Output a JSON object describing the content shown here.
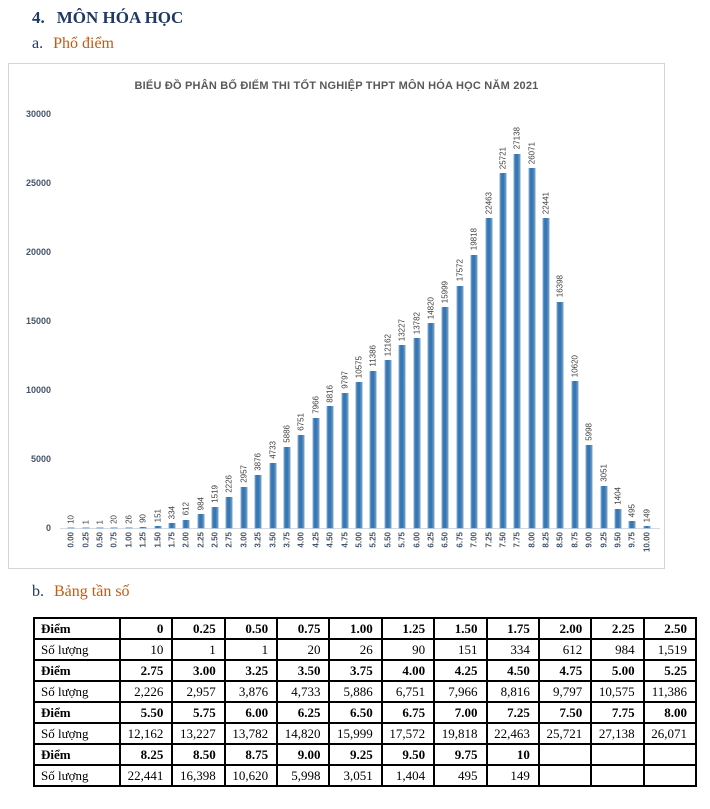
{
  "page": {
    "section_number": "4.",
    "section_title": "MÔN HÓA HỌC",
    "sub_a_prefix": "a.",
    "sub_a_label": "Phổ điểm",
    "sub_b_prefix": "b.",
    "sub_b_label": "Bảng tần số"
  },
  "chart_data": {
    "type": "bar",
    "title": "BIỂU ĐỒ PHÂN BỐ ĐIỂM THI TỐT NGHIỆP THPT MÔN HÓA HỌC NĂM 2021",
    "xlabel": "",
    "ylabel": "",
    "categories": [
      "0.00",
      "0.25",
      "0.50",
      "0.75",
      "1.00",
      "1.25",
      "1.50",
      "1.75",
      "2.00",
      "2.25",
      "2.50",
      "2.75",
      "3.00",
      "3.25",
      "3.50",
      "3.75",
      "4.00",
      "4.25",
      "4.50",
      "4.75",
      "5.00",
      "5.25",
      "5.50",
      "5.75",
      "6.00",
      "6.25",
      "6.50",
      "6.75",
      "7.00",
      "7.25",
      "7.50",
      "7.75",
      "8.00",
      "8.25",
      "8.50",
      "8.75",
      "9.00",
      "9.25",
      "9.50",
      "9.75",
      "10.00"
    ],
    "values": [
      10,
      1,
      1,
      20,
      26,
      90,
      151,
      334,
      612,
      984,
      1519,
      2226,
      2957,
      3876,
      4733,
      5886,
      6751,
      7966,
      8816,
      9797,
      10575,
      11386,
      12162,
      13227,
      13782,
      14820,
      15999,
      17572,
      19818,
      22463,
      25721,
      27138,
      26071,
      22441,
      16398,
      10620,
      5998,
      3051,
      1404,
      495,
      149
    ],
    "ylim": [
      0,
      30000
    ],
    "yticks": [
      0,
      5000,
      10000,
      15000,
      20000,
      25000,
      30000
    ],
    "grid": false,
    "legend": null,
    "bar_color": "#2E74B5",
    "bar_labels_rotated": true
  },
  "colors": {
    "heading_navy": "#1F3864",
    "heading_orange": "#C55A11",
    "chart_title_gray": "#595959",
    "axis_label": "#44546A",
    "bar_blue": "#2E74B5"
  },
  "table": {
    "row_label_score": "Điểm",
    "row_label_count": "Số lượng",
    "rows": [
      {
        "label": "Điểm",
        "bold": true,
        "cells": [
          "0",
          "0.25",
          "0.50",
          "0.75",
          "1.00",
          "1.25",
          "1.50",
          "1.75",
          "2.00",
          "2.25",
          "2.50"
        ]
      },
      {
        "label": "Số lượng",
        "bold": false,
        "cells": [
          "10",
          "1",
          "1",
          "20",
          "26",
          "90",
          "151",
          "334",
          "612",
          "984",
          "1,519"
        ]
      },
      {
        "label": "Điểm",
        "bold": true,
        "cells": [
          "2.75",
          "3.00",
          "3.25",
          "3.50",
          "3.75",
          "4.00",
          "4.25",
          "4.50",
          "4.75",
          "5.00",
          "5.25"
        ]
      },
      {
        "label": "Số lượng",
        "bold": false,
        "cells": [
          "2,226",
          "2,957",
          "3,876",
          "4,733",
          "5,886",
          "6,751",
          "7,966",
          "8,816",
          "9,797",
          "10,575",
          "11,386"
        ]
      },
      {
        "label": "Điểm",
        "bold": true,
        "cells": [
          "5.50",
          "5.75",
          "6.00",
          "6.25",
          "6.50",
          "6.75",
          "7.00",
          "7.25",
          "7.50",
          "7.75",
          "8.00"
        ]
      },
      {
        "label": "Số lượng",
        "bold": false,
        "cells": [
          "12,162",
          "13,227",
          "13,782",
          "14,820",
          "15,999",
          "17,572",
          "19,818",
          "22,463",
          "25,721",
          "27,138",
          "26,071"
        ]
      },
      {
        "label": "Điểm",
        "bold": true,
        "cells": [
          "8.25",
          "8.50",
          "8.75",
          "9.00",
          "9.25",
          "9.50",
          "9.75",
          "10",
          "",
          "",
          ""
        ]
      },
      {
        "label": "Số lượng",
        "bold": false,
        "cells": [
          "22,441",
          "16,398",
          "10,620",
          "5,998",
          "3,051",
          "1,404",
          "495",
          "149",
          "",
          "",
          ""
        ]
      }
    ]
  }
}
